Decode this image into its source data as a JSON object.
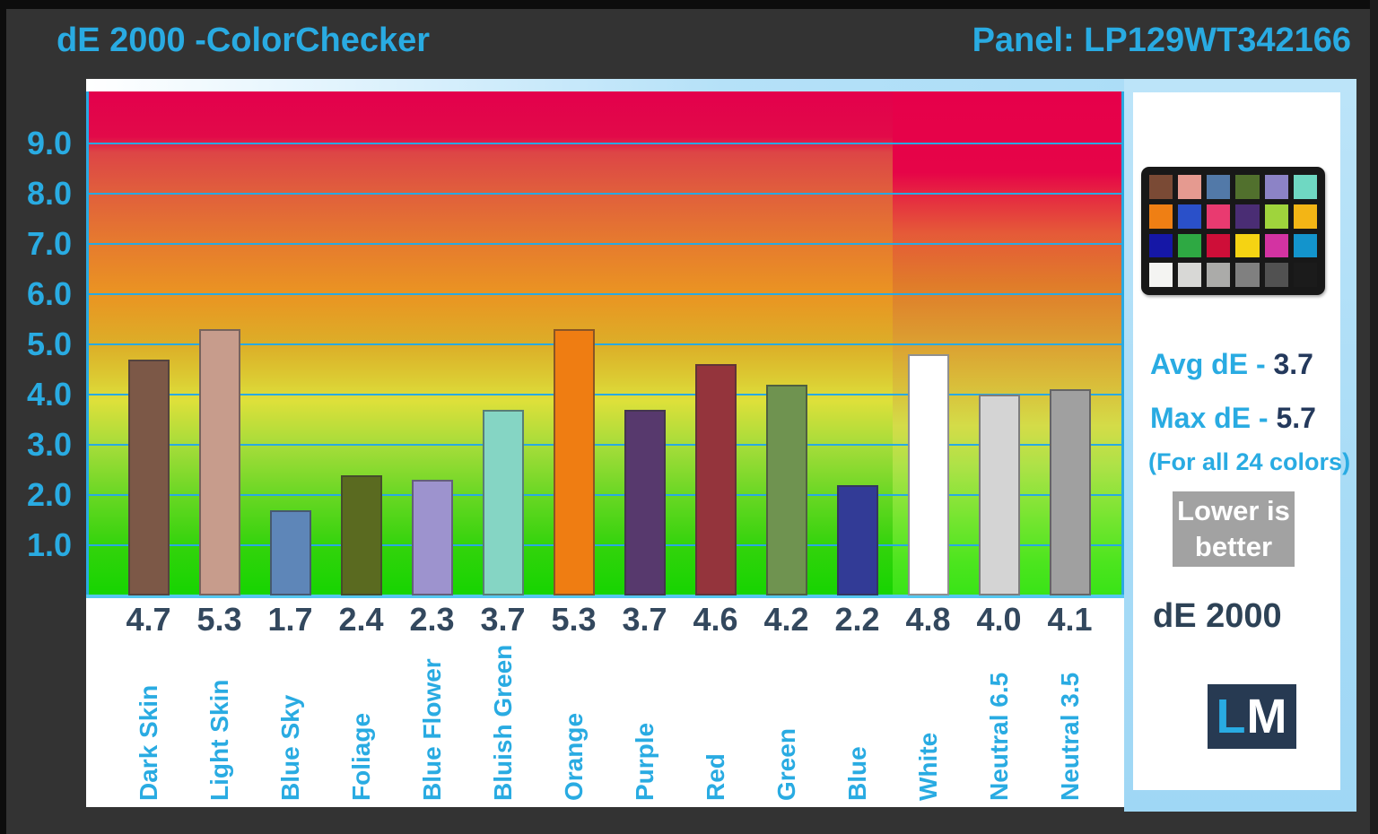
{
  "header": {
    "title": "dE 2000 -ColorChecker",
    "panel_label": "Panel: LP129WT342166"
  },
  "colors": {
    "accent_cyan": "#29ABE2",
    "navy_text": "#33485E",
    "background": "#333333",
    "frame_light_blue": "#A7DBF6",
    "badge_gray": "#A2A2A2",
    "logo_navy": "#273A52",
    "gridline": "#2AA9E1",
    "baseline": "#55C8F1"
  },
  "chart_data": {
    "type": "bar",
    "title": "dE 2000 -ColorChecker",
    "subtitle": "Panel: LP129WT342166",
    "xlabel": "",
    "ylabel": "dE 2000",
    "ylim": [
      0,
      10
    ],
    "grid": true,
    "ytick_values": [
      1,
      2,
      3,
      4,
      5,
      6,
      7,
      8,
      9
    ],
    "ytick_labels": [
      "1.0",
      "2.0",
      "3.0",
      "4.0",
      "5.0",
      "6.0",
      "7.0",
      "8.0",
      "9.0"
    ],
    "categories": [
      "Dark Skin",
      "Light Skin",
      "Blue Sky",
      "Foliage",
      "Blue Flower",
      "Bluish Green",
      "Orange",
      "Purple",
      "Red",
      "Green",
      "Blue",
      "White",
      "Neutral 6.5",
      "Neutral 3.5"
    ],
    "values": [
      4.7,
      5.3,
      1.7,
      2.4,
      2.3,
      3.7,
      5.3,
      3.7,
      4.6,
      4.2,
      2.2,
      4.8,
      4.0,
      4.1
    ],
    "value_labels": [
      "4.7",
      "5.3",
      "1.7",
      "2.4",
      "2.3",
      "3.7",
      "5.3",
      "3.7",
      "4.6",
      "4.2",
      "2.2",
      "4.8",
      "4.0",
      "4.1"
    ],
    "bar_colors": [
      "#7C5847",
      "#C79C8C",
      "#5E86B8",
      "#5A6A20",
      "#9D93CE",
      "#85D5C4",
      "#EF7D12",
      "#57396D",
      "#94343C",
      "#6F9350",
      "#323B96",
      "#FFFFFF",
      "#D4D4D4",
      "#A0A0A0"
    ],
    "highlight_categories": [
      "White",
      "Neutral 6.5",
      "Neutral 3.5"
    ],
    "background_gradient_main": [
      "#E3004C 0%",
      "#E20A49 9%",
      "#DD4546 12%",
      "#E05F3C 20%",
      "#E67B2E 30%",
      "#EA9422 40%",
      "#DCAE28 50%",
      "#DCCC33 57%",
      "#DEE03A 61%",
      "#A5DC3A 70%",
      "#67D723 80%",
      "#32D30B 90%",
      "#14D400 100%"
    ],
    "background_gradient_highlight": [
      "#E6004A 0%",
      "#E60448 16%",
      "#E5333F 22%",
      "#E55A38 28%",
      "#E07B2A 38%",
      "#DC9A30 48%",
      "#D9BE3A 58%",
      "#D4DC48 66%",
      "#ADE247 74%",
      "#77E531 84%",
      "#4CE51E 93%",
      "#37E316 100%"
    ],
    "legend_note": "Lower is better"
  },
  "sidebar": {
    "avg_label": "Avg dE - ",
    "avg_value": "3.7",
    "max_label": "Max dE - ",
    "max_value": "5.7",
    "note": "(For all 24 colors)",
    "badge_line1": "Lower is",
    "badge_line2": "better",
    "caption": "dE 2000",
    "logo_l": "L",
    "logo_m": "M",
    "colorchecker_swatches": [
      "#7A4A35",
      "#E59A90",
      "#5279A8",
      "#51702D",
      "#8C83C6",
      "#6FD8C2",
      "#EF7F14",
      "#2A50C9",
      "#E93A70",
      "#4A2D74",
      "#9FD43C",
      "#F3B515",
      "#1517A6",
      "#2EA943",
      "#CE0E38",
      "#F5D313",
      "#D333A2",
      "#1394CC",
      "#F4F4F2",
      "#D8D8D6",
      "#ABABA9",
      "#808080",
      "#515151",
      "#1B1B1B"
    ]
  }
}
